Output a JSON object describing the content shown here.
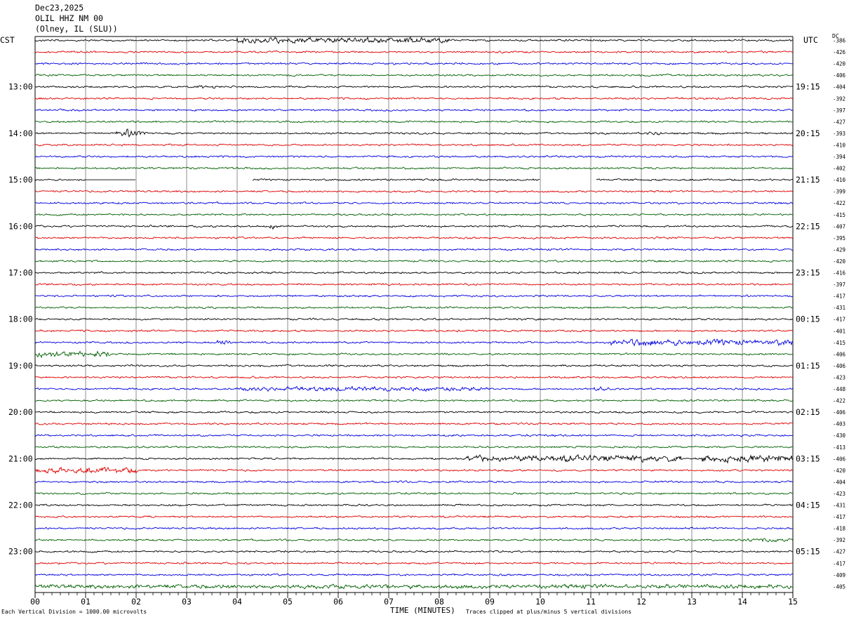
{
  "header": {
    "date": "Dec23,2025",
    "station": "OLIL HHZ NM 00",
    "location": "(Olney, IL (SLU))"
  },
  "left_zone": "CST",
  "right_zone": "UTC",
  "dc_label": "DC",
  "footer": {
    "scale_note": "Each Vertical Division = 1000.00 microvolts",
    "clip_note": "Traces clipped at plus/minus 5 vertical divisions"
  },
  "colors": {
    "trace_cycle": [
      "#000000",
      "#e00000",
      "#0000e0",
      "#006000"
    ],
    "grid": "#000000"
  },
  "chart_data": {
    "type": "line",
    "title": "Dec23,2025 OLIL HHZ NM 00 (Olney, IL (SLU))",
    "xlabel": "TIME (MINUTES)",
    "ylabel": "",
    "x_ticks": [
      "00",
      "01",
      "02",
      "03",
      "04",
      "05",
      "06",
      "07",
      "08",
      "09",
      "10",
      "11",
      "12",
      "13",
      "14",
      "15"
    ],
    "xlim": [
      0,
      15
    ],
    "grid": true,
    "rows_per_hour": 4,
    "left_hour_labels": [
      "13:00",
      "14:00",
      "15:00",
      "16:00",
      "17:00",
      "18:00",
      "19:00",
      "20:00",
      "21:00",
      "22:00",
      "23:00"
    ],
    "right_hour_labels": [
      "19:15",
      "20:15",
      "21:15",
      "22:15",
      "23:15",
      "00:15",
      "01:15",
      "02:15",
      "03:15",
      "04:15",
      "05:15"
    ],
    "dc_offsets": [
      "-386",
      "-426",
      "-420",
      "-406",
      "-404",
      "-392",
      "-397",
      "-427",
      "-393",
      "-410",
      "-394",
      "-402",
      "-410",
      "-399",
      "-422",
      "-415",
      "-407",
      "-395",
      "-429",
      "-420",
      "-416",
      "-397",
      "-417",
      "-431",
      "-417",
      "-401",
      "-415",
      "-406",
      "-406",
      "-423",
      "-448",
      "-422",
      "-406",
      "-403",
      "-430",
      "-413",
      "-406",
      "-420",
      "-404",
      "-423",
      "-431",
      "-417",
      "-418",
      "-392",
      "-427",
      "-417",
      "-409",
      "-405"
    ],
    "events": [
      {
        "row": 0,
        "start_min": 4.0,
        "end_min": 8.2,
        "amp": 2.2
      },
      {
        "row": 8,
        "start_min": 1.6,
        "end_min": 2.2,
        "amp": 4.0
      },
      {
        "row": 8,
        "start_min": 12.1,
        "end_min": 12.4,
        "amp": 2.0
      },
      {
        "row": 4,
        "start_min": 3.2,
        "end_min": 3.6,
        "amp": 1.8
      },
      {
        "row": 26,
        "start_min": 11.4,
        "end_min": 15.0,
        "amp": 2.6
      },
      {
        "row": 26,
        "start_min": 3.5,
        "end_min": 3.9,
        "amp": 2.0
      },
      {
        "row": 27,
        "start_min": 0.0,
        "end_min": 1.5,
        "amp": 2.4
      },
      {
        "row": 30,
        "start_min": 4.0,
        "end_min": 9.0,
        "amp": 1.3
      },
      {
        "row": 30,
        "start_min": 11.0,
        "end_min": 11.4,
        "amp": 2.0
      },
      {
        "row": 36,
        "start_min": 8.5,
        "end_min": 12.8,
        "amp": 2.6
      },
      {
        "row": 36,
        "start_min": 13.2,
        "end_min": 15.0,
        "amp": 3.2
      },
      {
        "row": 37,
        "start_min": 0.0,
        "end_min": 2.0,
        "amp": 2.6
      },
      {
        "row": 16,
        "start_min": 4.6,
        "end_min": 4.8,
        "amp": 2.5
      },
      {
        "row": 43,
        "start_min": 14.0,
        "end_min": 15.0,
        "amp": 1.6
      },
      {
        "row": 47,
        "start_min": 0.0,
        "end_min": 15.0,
        "amp": 1.3
      }
    ],
    "gaps": [
      {
        "row": 12,
        "start_min": 2.0,
        "end_min": 4.3
      },
      {
        "row": 12,
        "start_min": 10.0,
        "end_min": 11.1
      }
    ],
    "flat_segments": [
      {
        "row": 12,
        "start_min": 1.0,
        "end_min": 2.0
      }
    ]
  }
}
